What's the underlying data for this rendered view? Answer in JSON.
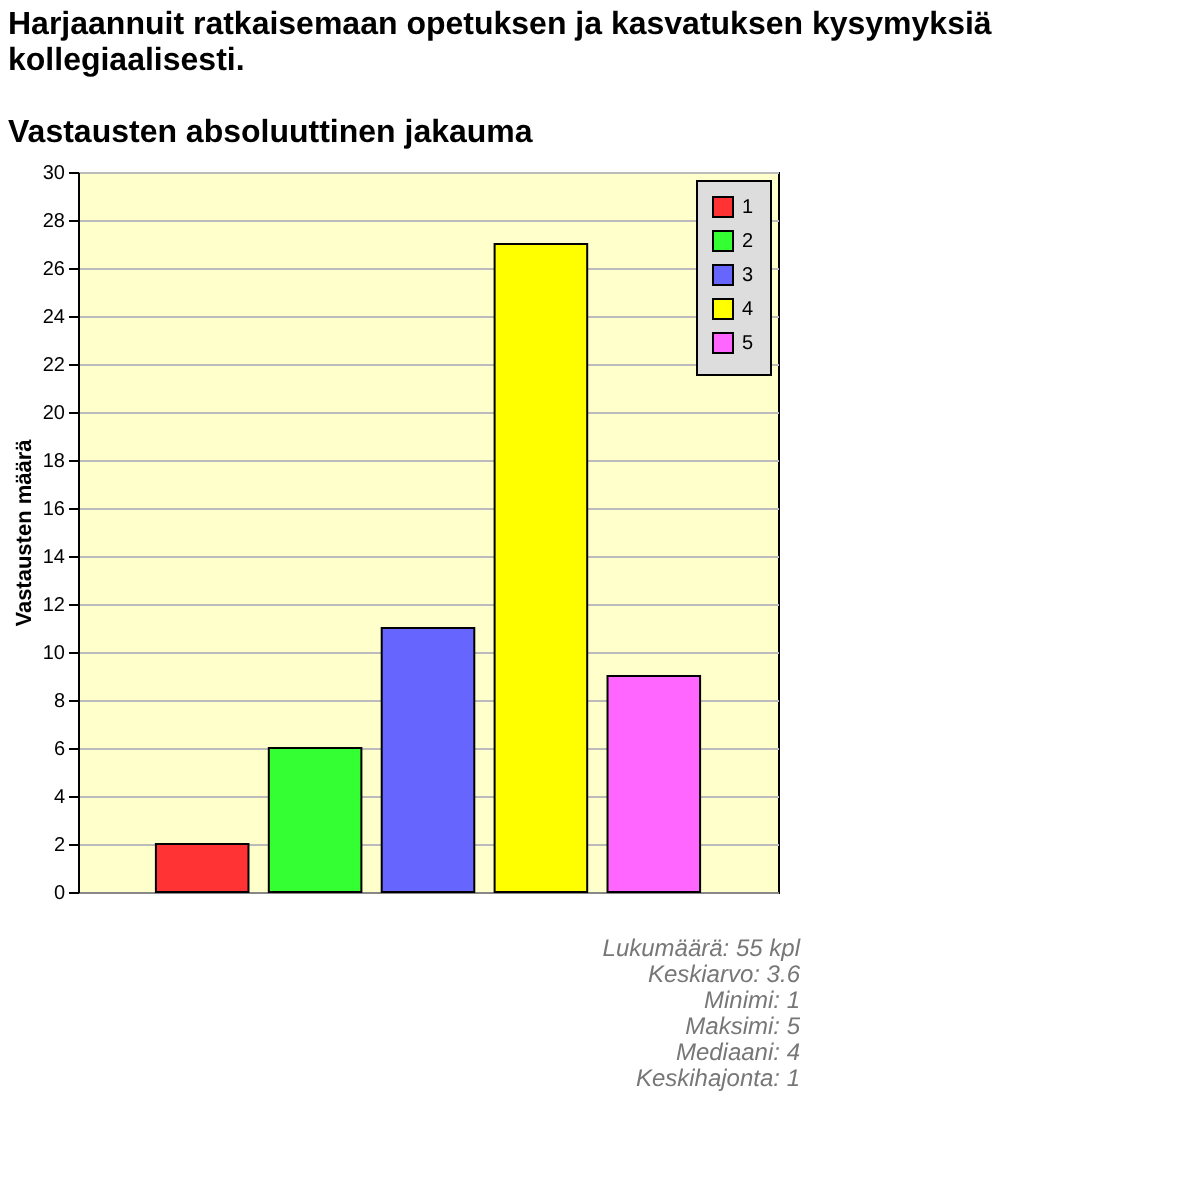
{
  "chart_data": {
    "type": "bar",
    "title": "Harjaannuit ratkaisemaan opetuksen ja kasvatuksen kysymyksiä kollegiaalisesti.",
    "subtitle": "Vastausten absoluuttinen jakauma",
    "ylabel": "Vastausten määrä",
    "categories": [
      null,
      null,
      null,
      null,
      null
    ],
    "series": [
      {
        "name": "1",
        "color": "#ff3333",
        "values": [
          2,
          null,
          null,
          null,
          null
        ]
      },
      {
        "name": "2",
        "color": "#33ff33",
        "values": [
          null,
          6,
          null,
          null,
          null
        ]
      },
      {
        "name": "3",
        "color": "#6666ff",
        "values": [
          null,
          null,
          11,
          null,
          null
        ]
      },
      {
        "name": "4",
        "color": "#ffff00",
        "values": [
          null,
          null,
          null,
          27,
          null
        ]
      },
      {
        "name": "5",
        "color": "#ff66ff",
        "values": [
          null,
          null,
          null,
          null,
          9
        ]
      }
    ],
    "ylim": [
      0,
      30
    ],
    "yticks": [
      0,
      2,
      4,
      6,
      8,
      10,
      12,
      14,
      16,
      18,
      20,
      22,
      24,
      26,
      28,
      30
    ],
    "grid": "y",
    "legend": "top right",
    "tick_labels": "y",
    "annotations": [
      "Lukumäärä: 55 kpl",
      "Keskiarvo: 3.6",
      "Minimi: 1",
      "Maksimi: 5",
      "Mediaani: 4",
      "Keskihajonta: 1"
    ]
  }
}
